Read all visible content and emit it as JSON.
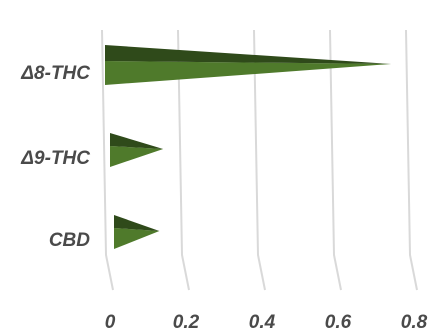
{
  "chart_data": {
    "type": "bar",
    "orientation": "horizontal",
    "categories": [
      "Δ8-THC",
      "Δ9-THC",
      "CBD"
    ],
    "values": [
      0.74,
      0.14,
      0.13
    ],
    "xticks": [
      "0",
      "0.2",
      "0.4",
      "0.6",
      "0.8"
    ],
    "xlim": [
      0,
      0.8
    ],
    "grid": true,
    "legend": "none",
    "colors": {
      "bar_light": "#4f7a2b",
      "bar_dark": "#2f4a1a",
      "grid": "#d9d9d9",
      "text": "#4a4a4a"
    }
  }
}
